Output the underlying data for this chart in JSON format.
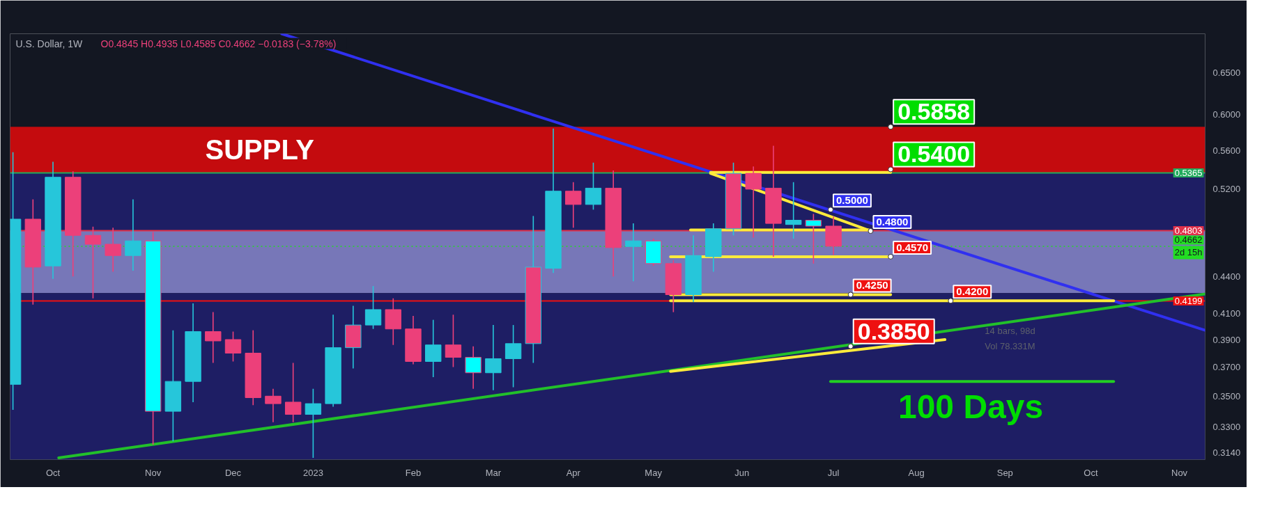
{
  "chart_data": {
    "type": "candlestick",
    "title": "U.S. Dollar, 1W",
    "subtitle": "O0.4845  H0.4935  L0.4585  C0.4662  −0.0183 (−3.78%)",
    "x": [
      "2022-09-19",
      "2022-09-26",
      "2022-10-03",
      "2022-10-10",
      "2022-10-17",
      "2022-10-24",
      "2022-10-31",
      "2022-11-07",
      "2022-11-14",
      "2022-11-21",
      "2022-11-28",
      "2022-12-05",
      "2022-12-12",
      "2022-12-19",
      "2022-12-26",
      "2023-01-02",
      "2023-01-09",
      "2023-01-16",
      "2023-01-23",
      "2023-01-30",
      "2023-02-06",
      "2023-02-13",
      "2023-02-20",
      "2023-02-27",
      "2023-03-06",
      "2023-03-13",
      "2023-03-20",
      "2023-03-27",
      "2023-04-03",
      "2023-04-10",
      "2023-04-17",
      "2023-04-24",
      "2023-05-01",
      "2023-05-08",
      "2023-05-15",
      "2023-05-22",
      "2023-05-29",
      "2023-06-05",
      "2023-06-12",
      "2023-06-19",
      "2023-06-26",
      "2023-07-03"
    ],
    "ohlc": [
      [
        0.358,
        0.558,
        0.341,
        0.491
      ],
      [
        0.491,
        0.51,
        0.417,
        0.448
      ],
      [
        0.449,
        0.548,
        0.438,
        0.532
      ],
      [
        0.532,
        0.538,
        0.44,
        0.476
      ],
      [
        0.476,
        0.484,
        0.422,
        0.468
      ],
      [
        0.468,
        0.483,
        0.444,
        0.458
      ],
      [
        0.458,
        0.51,
        0.445,
        0.471
      ],
      [
        0.471,
        0.479,
        0.319,
        0.34
      ],
      [
        0.34,
        0.397,
        0.321,
        0.36
      ],
      [
        0.36,
        0.418,
        0.346,
        0.396
      ],
      [
        0.396,
        0.411,
        0.373,
        0.389
      ],
      [
        0.39,
        0.396,
        0.374,
        0.38
      ],
      [
        0.38,
        0.397,
        0.344,
        0.349
      ],
      [
        0.35,
        0.355,
        0.333,
        0.345
      ],
      [
        0.346,
        0.373,
        0.333,
        0.338
      ],
      [
        0.338,
        0.355,
        0.311,
        0.345
      ],
      [
        0.345,
        0.409,
        0.343,
        0.384
      ],
      [
        0.384,
        0.416,
        0.369,
        0.401
      ],
      [
        0.401,
        0.432,
        0.398,
        0.413
      ],
      [
        0.413,
        0.422,
        0.386,
        0.398
      ],
      [
        0.398,
        0.408,
        0.372,
        0.374
      ],
      [
        0.374,
        0.405,
        0.363,
        0.386
      ],
      [
        0.386,
        0.409,
        0.37,
        0.377
      ],
      [
        0.377,
        0.385,
        0.355,
        0.366
      ],
      [
        0.366,
        0.401,
        0.354,
        0.376
      ],
      [
        0.376,
        0.401,
        0.356,
        0.387
      ],
      [
        0.387,
        0.494,
        0.373,
        0.448
      ],
      [
        0.447,
        0.584,
        0.443,
        0.518
      ],
      [
        0.518,
        0.527,
        0.483,
        0.505
      ],
      [
        0.505,
        0.547,
        0.5,
        0.521
      ],
      [
        0.521,
        0.539,
        0.44,
        0.465
      ],
      [
        0.466,
        0.487,
        0.436,
        0.471
      ],
      [
        0.471,
        0.473,
        0.449,
        0.451
      ],
      [
        0.451,
        0.454,
        0.411,
        0.425
      ],
      [
        0.425,
        0.476,
        0.419,
        0.458
      ],
      [
        0.457,
        0.487,
        0.444,
        0.482
      ],
      [
        0.482,
        0.547,
        0.476,
        0.536
      ],
      [
        0.536,
        0.543,
        0.474,
        0.52
      ],
      [
        0.521,
        0.565,
        0.457,
        0.487
      ],
      [
        0.486,
        0.527,
        0.473,
        0.49
      ],
      [
        0.49,
        0.496,
        0.451,
        0.4845
      ],
      [
        0.4845,
        0.4935,
        0.4585,
        0.4662
      ]
    ],
    "colors": [
      "#26c6da",
      "#ec407a",
      "#26c6da",
      "#ec407a",
      "#ec407a",
      "#ec407a",
      "#26c6da",
      "#00ffff",
      "#26c6da",
      "#26c6da",
      "#ec407a",
      "#ec407a",
      "#ec407a",
      "#ec407a",
      "#ec407a",
      "#26c6da",
      "#26c6da",
      "#ec407a",
      "#26c6da",
      "#ec407a",
      "#ec407a",
      "#26c6da",
      "#ec407a",
      "#00ffff",
      "#26c6da",
      "#26c6da",
      "#ec407a",
      "#26c6da",
      "#ec407a",
      "#26c6da",
      "#ec407a",
      "#26c6da",
      "#00ffff",
      "#ec407a",
      "#26c6da",
      "#26c6da",
      "#ec407a",
      "#ec407a",
      "#ec407a",
      "#26c6da",
      "#00ffff",
      "#ec407a"
    ],
    "series": [
      {
        "type": "line",
        "color": "#3030f0",
        "x": [
          "2022-12-22",
          "2023-03-27",
          "2023-11-10"
        ],
        "values": [
          0.7,
          0.592,
          0.397
        ]
      },
      {
        "type": "line",
        "color": "#22c02a",
        "x": [
          "2022-10-05",
          "2023-11-10"
        ],
        "values": [
          0.311,
          0.4255
        ]
      },
      {
        "type": "line",
        "color": "#ffeb3b",
        "x": [
          "2023-05-07",
          "2023-08-11"
        ],
        "values": [
          0.367,
          0.39
        ]
      },
      {
        "type": "line",
        "color": "#ffeb3b",
        "x": [
          "2023-05-21",
          "2023-07-23"
        ],
        "values": [
          0.537,
          0.537
        ]
      },
      {
        "type": "line",
        "color": "#ffeb3b",
        "x": [
          "2023-05-21",
          "2023-07-16"
        ],
        "values": [
          0.536,
          0.48
        ]
      },
      {
        "type": "line",
        "color": "#ffeb3b",
        "x": [
          "2023-05-14",
          "2023-07-16"
        ],
        "values": [
          0.481,
          0.481
        ]
      },
      {
        "type": "line",
        "color": "#ffeb3b",
        "x": [
          "2023-05-07",
          "2023-07-23"
        ],
        "values": [
          0.457,
          0.457
        ]
      },
      {
        "type": "line",
        "color": "#ffeb3b",
        "x": [
          "2023-05-07",
          "2023-07-23"
        ],
        "values": [
          0.425,
          0.425
        ]
      },
      {
        "type": "line",
        "color": "#ffeb3b",
        "x": [
          "2023-05-07",
          "2023-10-09"
        ],
        "values": [
          0.42,
          0.42
        ]
      },
      {
        "type": "line",
        "color": "#22d022",
        "x": [
          "2023-07-02",
          "2023-10-09"
        ],
        "values": [
          0.36,
          0.36
        ]
      }
    ],
    "bands": [
      {
        "axis": "y",
        "from": 0.5365,
        "to": 0.5858,
        "label": "SUPPLY",
        "color": "#c40b0e"
      },
      {
        "axis": "y",
        "from": 0.4803,
        "to": 0.5365,
        "label": null,
        "color": "#1e1e64"
      },
      {
        "axis": "y",
        "from": 0.4262,
        "to": 0.4803,
        "label": null,
        "color": "#7777b8"
      },
      {
        "axis": "y",
        "from": 0.31,
        "to": 0.4262,
        "label": null,
        "color": "#1e1e64"
      }
    ],
    "ref_lines": [
      {
        "axis": "y",
        "value": 0.5365,
        "label": "0.5365",
        "color": "#22ab5c",
        "line_style": "solid"
      },
      {
        "axis": "y",
        "value": 0.4803,
        "label": "0.4803",
        "color": "#e0304a",
        "line_style": "solid"
      },
      {
        "axis": "y",
        "value": 0.4662,
        "label": "0.4662\n2d 15h",
        "color": "#22dd22",
        "line_style": "dotted"
      },
      {
        "axis": "y",
        "value": 0.4199,
        "label": "0.4199",
        "color": "#ee1111",
        "line_style": "solid"
      }
    ],
    "annotations": [
      {
        "text": "0.5858",
        "x": "2023-07-23",
        "y": 0.5858
      },
      {
        "text": "0.5400",
        "x": "2023-07-23",
        "y": 0.54
      },
      {
        "text": "0.5000",
        "x": "2023-07-02",
        "y": 0.5
      },
      {
        "text": "0.4800",
        "x": "2023-07-16",
        "y": 0.48
      },
      {
        "text": "0.4570",
        "x": "2023-07-23",
        "y": 0.457
      },
      {
        "text": "0.4250",
        "x": "2023-07-09",
        "y": 0.425
      },
      {
        "text": "0.4200",
        "x": "2023-08-13",
        "y": 0.42
      },
      {
        "text": "0.3850",
        "x": "2023-07-09",
        "y": 0.385
      },
      {
        "text": "100 Days",
        "x": "2023-08-20",
        "y": 0.36
      },
      "14 bars, 98d",
      "Vol 78.331M"
    ],
    "xlim": [
      "2022-09-18",
      "2023-11-10"
    ],
    "xticks": [
      {
        "value": "2022-10-03",
        "label": "Oct"
      },
      {
        "value": "2022-11-07",
        "label": "Nov"
      },
      {
        "value": "2022-12-05",
        "label": "Dec"
      },
      {
        "value": "2023-01-02",
        "label": "2023"
      },
      {
        "value": "2023-02-06",
        "label": "Feb"
      },
      {
        "value": "2023-03-06",
        "label": "Mar"
      },
      {
        "value": "2023-04-03",
        "label": "Apr"
      },
      {
        "value": "2023-05-01",
        "label": "May"
      },
      {
        "value": "2023-06-01",
        "label": "Jun"
      },
      {
        "value": "2023-07-03",
        "label": "Jul"
      },
      {
        "value": "2023-08-01",
        "label": "Aug"
      },
      {
        "value": "2023-09-01",
        "label": "Sep"
      },
      {
        "value": "2023-10-01",
        "label": "Oct"
      },
      {
        "value": "2023-11-01",
        "label": "Nov"
      }
    ],
    "ylim": [
      0.31,
      0.7
    ],
    "yticks": [
      {
        "value": 0.314,
        "label": "0.3140"
      },
      {
        "value": 0.33,
        "label": "0.3300"
      },
      {
        "value": 0.35,
        "label": "0.3500"
      },
      {
        "value": 0.37,
        "label": "0.3700"
      },
      {
        "value": 0.39,
        "label": "0.3900"
      },
      {
        "value": 0.41,
        "label": "0.4100"
      },
      {
        "value": 0.44,
        "label": "0.4400"
      },
      {
        "value": 0.52,
        "label": "0.5200"
      },
      {
        "value": 0.56,
        "label": "0.5600"
      },
      {
        "value": 0.6,
        "label": "0.6000"
      },
      {
        "value": 0.65,
        "label": "0.6500"
      }
    ],
    "log": "y"
  }
}
